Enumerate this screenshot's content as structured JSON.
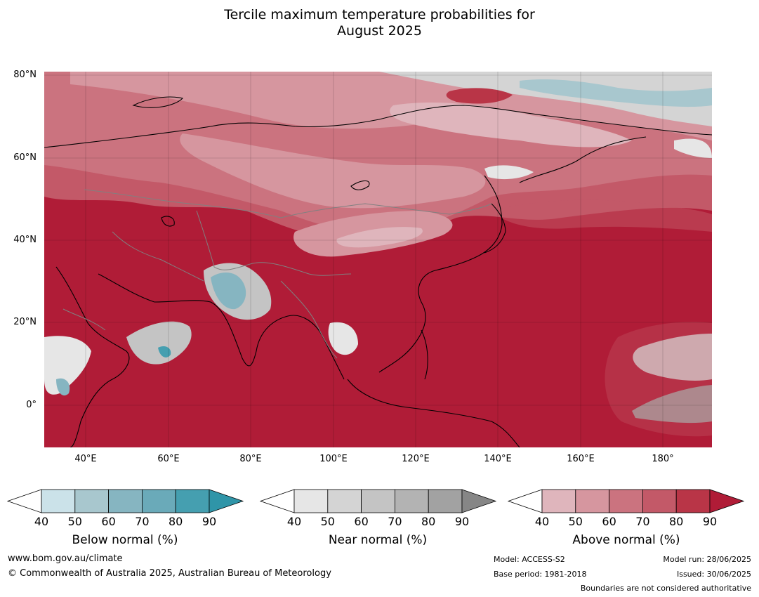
{
  "title": {
    "line1": "Tercile maximum temperature probabilities for",
    "line2": "August 2025"
  },
  "map": {
    "lat_labels": [
      "80°N",
      "60°N",
      "40°N",
      "20°N",
      "0°"
    ],
    "lon_labels": [
      "40°E",
      "60°E",
      "80°E",
      "100°E",
      "120°E",
      "140°E",
      "160°E",
      "180°"
    ],
    "colors": {
      "above": [
        "#dfb5bc",
        "#d6969f",
        "#cb737f",
        "#c35968",
        "#b93547",
        "#b01c37"
      ],
      "near": [
        "#e6e6e6",
        "#d4d4d4",
        "#c4c4c4",
        "#b3b3b3",
        "#a2a2a2",
        "#868686"
      ],
      "below": [
        "#cbe2e9",
        "#a8c7ce",
        "#86b5c1",
        "#6aaab9",
        "#459fb0",
        "#2f95a8"
      ]
    }
  },
  "legends": [
    {
      "title": "Below normal (%)",
      "ticks": [
        "40",
        "50",
        "60",
        "70",
        "80",
        "90"
      ],
      "colors": [
        "#cbe2e9",
        "#a8c7ce",
        "#86b5c1",
        "#6aaab9",
        "#459fb0",
        "#2f95a8"
      ]
    },
    {
      "title": "Near normal (%)",
      "ticks": [
        "40",
        "50",
        "60",
        "70",
        "80",
        "90"
      ],
      "colors": [
        "#e6e6e6",
        "#d4d4d4",
        "#c4c4c4",
        "#b3b3b3",
        "#a2a2a2",
        "#868686"
      ]
    },
    {
      "title": "Above normal (%)",
      "ticks": [
        "40",
        "50",
        "60",
        "70",
        "80",
        "90"
      ],
      "colors": [
        "#dfb5bc",
        "#d6969f",
        "#cb737f",
        "#c35968",
        "#b93547",
        "#b01c37"
      ]
    }
  ],
  "footer": {
    "website": "www.bom.gov.au/climate",
    "copyright": "© Commonwealth of Australia 2025, Australian Bureau of Meteorology",
    "model": "Model: ACCESS-S2",
    "base_period": "Base period: 1981-2018",
    "model_run": "Model run: 28/06/2025",
    "issued": "Issued: 30/06/2025",
    "disclaimer": "Boundaries are not considered authoritative"
  }
}
